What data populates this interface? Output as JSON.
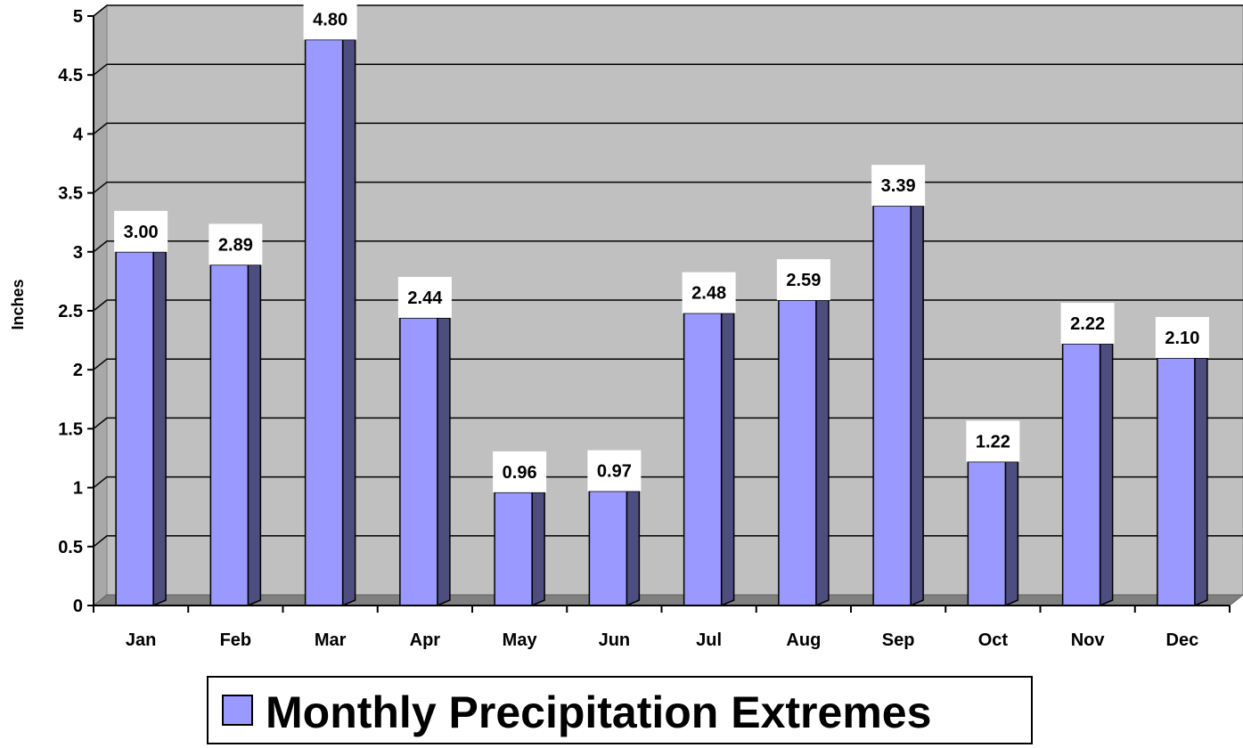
{
  "chart_data": {
    "type": "bar",
    "categories": [
      "Jan",
      "Feb",
      "Mar",
      "Apr",
      "May",
      "Jun",
      "Jul",
      "Aug",
      "Sep",
      "Oct",
      "Nov",
      "Dec"
    ],
    "series": [
      {
        "name": "Monthly Precipitation Extremes",
        "values": [
          3.0,
          2.89,
          4.8,
          2.44,
          0.96,
          0.97,
          2.48,
          2.59,
          3.39,
          1.22,
          2.22,
          2.1
        ],
        "labels": [
          "3.00",
          "2.89",
          "4.80",
          "2.44",
          "0.96",
          "0.97",
          "2.48",
          "2.59",
          "3.39",
          "1.22",
          "2.22",
          "2.10"
        ]
      }
    ],
    "ylabel": "Inches",
    "ylim": [
      0,
      5
    ],
    "yticks": [
      "0",
      "0.5",
      "1",
      "1.5",
      "2",
      "2.5",
      "3",
      "3.5",
      "4",
      "4.5",
      "5"
    ],
    "grid": true,
    "legend": "bottom-center",
    "colors": {
      "bar_front": "#9999ff",
      "bar_side": "#4d4d80",
      "wall": "#c0c0c0",
      "floor": "#808080"
    }
  }
}
